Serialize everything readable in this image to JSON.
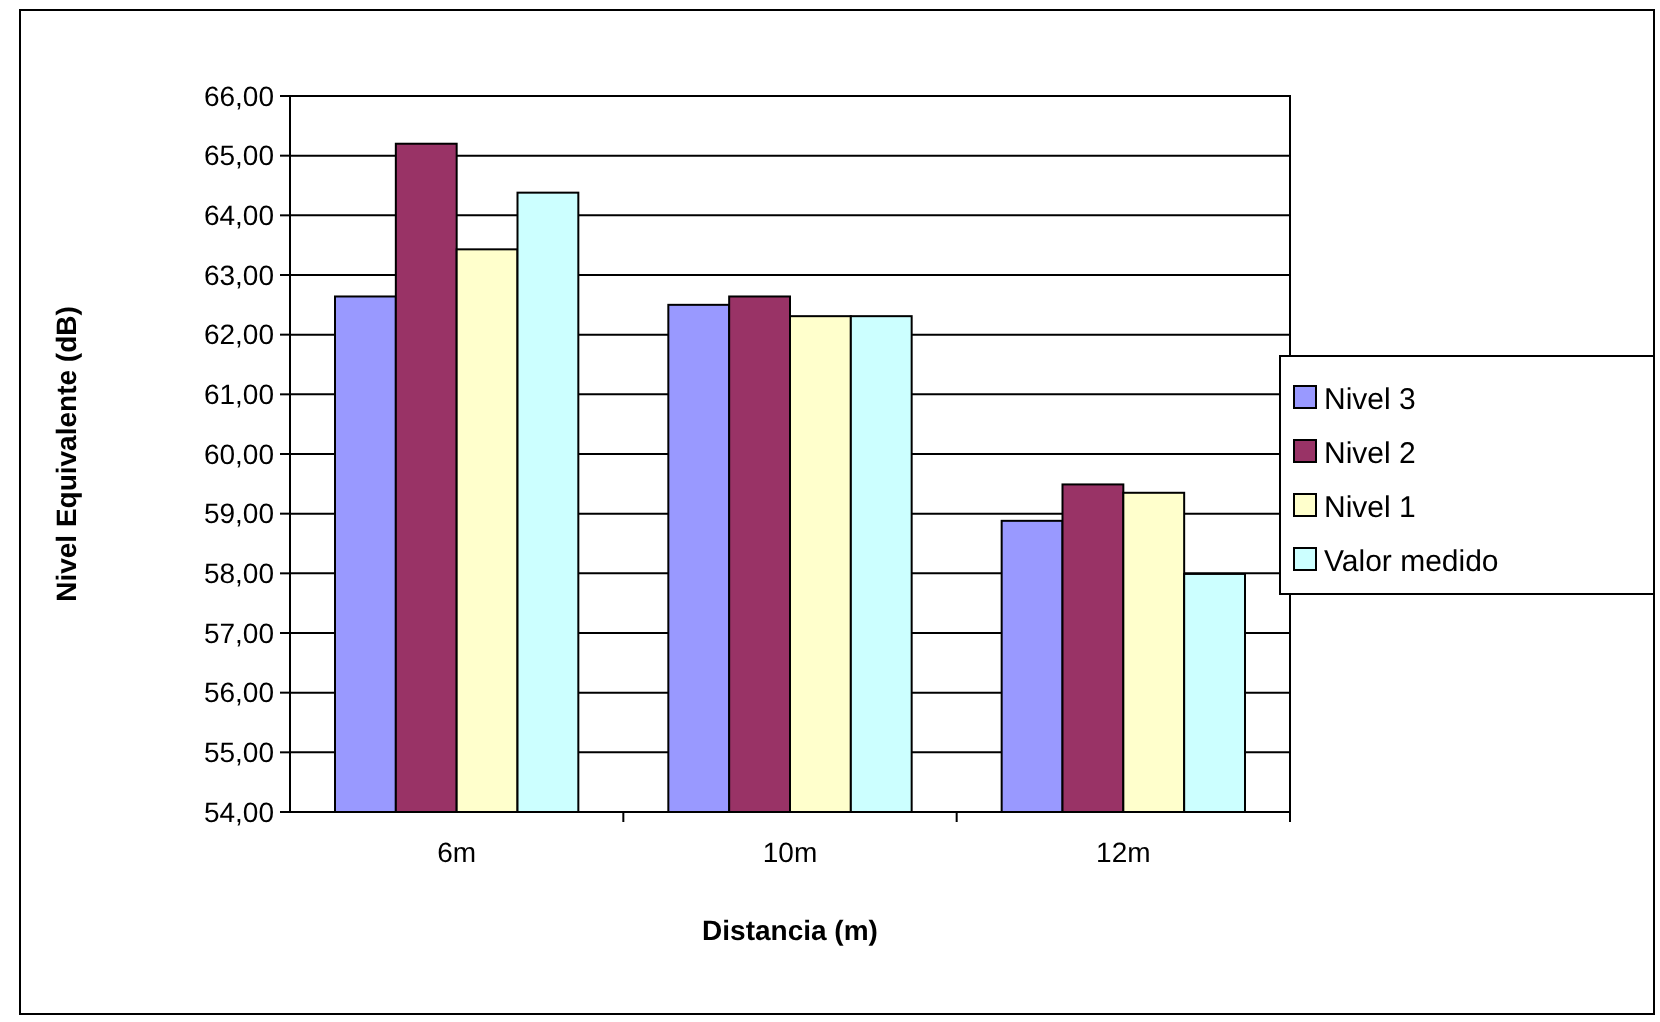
{
  "chart_data": {
    "type": "bar",
    "xlabel": "Distancia (m)",
    "ylabel": "Nivel Equivalente (dB)",
    "categories": [
      "6m",
      "10m",
      "12m"
    ],
    "series": [
      {
        "name": "Nivel 3",
        "color": "#9999ff",
        "values": [
          62.64,
          62.5,
          58.88
        ]
      },
      {
        "name": "Nivel 2",
        "color": "#993366",
        "values": [
          65.2,
          62.64,
          59.49
        ]
      },
      {
        "name": "Nivel 1",
        "color": "#ffffcc",
        "values": [
          63.43,
          62.31,
          59.35
        ]
      },
      {
        "name": "Valor medido",
        "color": "#ccffff",
        "values": [
          64.38,
          62.31,
          57.99
        ]
      }
    ],
    "ylim": [
      54,
      66
    ],
    "yticks": [
      {
        "value": 54,
        "label": "54,00"
      },
      {
        "value": 55,
        "label": "55,00"
      },
      {
        "value": 56,
        "label": "56,00"
      },
      {
        "value": 57,
        "label": "57,00"
      },
      {
        "value": 58,
        "label": "58,00"
      },
      {
        "value": 59,
        "label": "59,00"
      },
      {
        "value": 60,
        "label": "60,00"
      },
      {
        "value": 61,
        "label": "61,00"
      },
      {
        "value": 62,
        "label": "62,00"
      },
      {
        "value": 63,
        "label": "63,00"
      },
      {
        "value": 64,
        "label": "64,00"
      },
      {
        "value": 65,
        "label": "65,00"
      },
      {
        "value": 66,
        "label": "66,00"
      }
    ],
    "grid": "y",
    "legend": "right"
  }
}
